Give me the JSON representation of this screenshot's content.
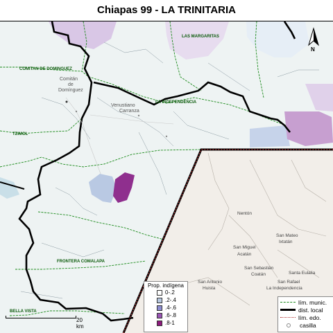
{
  "title": "Chiapas 99 - LA TRINITARIA",
  "north_label": "N",
  "scale_label": "20 km",
  "places": {
    "las_margaritas": "LAS MARGARITAS",
    "comitan": "COMITAN DE DOMINGUEZ",
    "comitan_town_1": "Comitán",
    "comitan_town_2": "de",
    "comitan_town_3": "Domínguez",
    "venustiano_1": "Venustiano",
    "venustiano_2": "Carranza",
    "la_independencia": "LA INDEPENDENCIA",
    "tzimol": "TZIMOL",
    "frontera_comalapa": "FRONTERA COMALAPA",
    "bella_vista": "BELLA VISTA",
    "nenton": "Nentón",
    "san_mateo_1": "San Mateo",
    "san_mateo_2": "Ixtatán",
    "san_miguel_1": "San Miguel",
    "san_miguel_2": "Acatán",
    "san_sebastian_1": "San Sebastián",
    "san_sebastian_2": "Coatán",
    "santa_eulalia": "Santa Eulalia",
    "san_antonio_1": "San Antonio",
    "san_antonio_2": "Huista",
    "san_rafael_1": "San Rafael",
    "san_rafael_2": "La Independencia"
  },
  "legend_indigena": {
    "title": "Prop. indígena",
    "items": [
      {
        "label": "0-.2",
        "color": "#ffffff"
      },
      {
        "label": ".2-.4",
        "color": "#b8c8e0"
      },
      {
        "label": ".4-.6",
        "color": "#8c8cd0"
      },
      {
        "label": ".6-.8",
        "color": "#9a55b5"
      },
      {
        "label": ".8-1",
        "color": "#8e1a7e"
      }
    ]
  },
  "legend_lines": {
    "items": [
      {
        "label": "lím. munic.",
        "color": "#1a8a1a",
        "style": "dashed"
      },
      {
        "label": "dist. local",
        "color": "#000000",
        "style": "solid"
      },
      {
        "label": "lím. edo.",
        "color": "#b03030",
        "style": "dotted"
      },
      {
        "label": "casilla",
        "color": "#888888",
        "style": "point"
      }
    ]
  }
}
